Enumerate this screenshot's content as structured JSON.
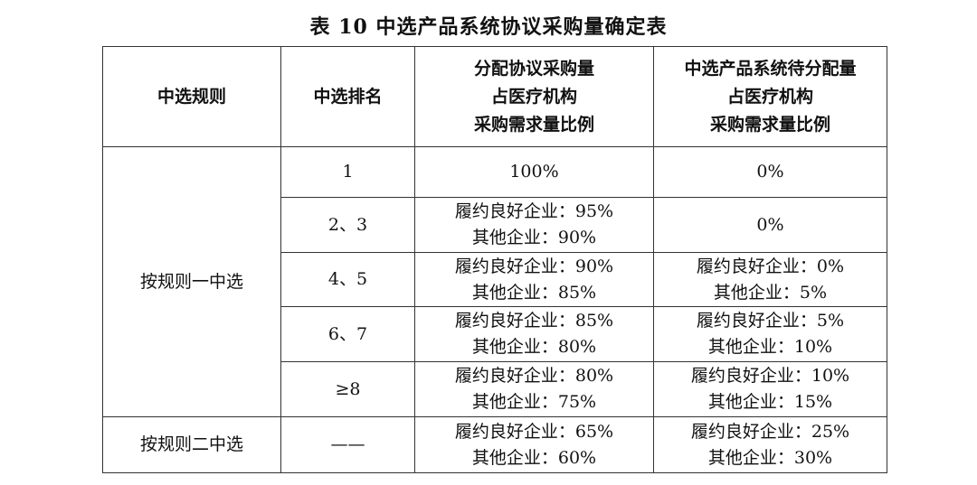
{
  "title": "表 10  中选产品系统协议采购量确定表",
  "headers": [
    {
      "lines": [
        "中选规则"
      ]
    },
    {
      "lines": [
        "中选排名"
      ]
    },
    {
      "lines": [
        "分配协议采购量",
        "占医疗机构",
        "采购需求量比例"
      ]
    },
    {
      "lines": [
        "中选产品系统待分配量",
        "占医疗机构",
        "采购需求量比例"
      ]
    }
  ],
  "groups": [
    {
      "rule": "按规则一中选"
    },
    {
      "rule": "按规则二中选"
    }
  ],
  "rows": [
    {
      "rank": "1",
      "allocated": [
        "100%"
      ],
      "pending": [
        "0%"
      ]
    },
    {
      "rank": "2、3",
      "allocated": [
        "履约良好企业：95%",
        "其他企业：90%"
      ],
      "pending": [
        "0%"
      ]
    },
    {
      "rank": "4、5",
      "allocated": [
        "履约良好企业：90%",
        "其他企业：85%"
      ],
      "pending": [
        "履约良好企业：0%",
        "其他企业：5%"
      ]
    },
    {
      "rank": "6、7",
      "allocated": [
        "履约良好企业：85%",
        "其他企业：80%"
      ],
      "pending": [
        "履约良好企业：5%",
        "其他企业：10%"
      ]
    },
    {
      "rank": "≥8",
      "allocated": [
        "履约良好企业：80%",
        "其他企业：75%"
      ],
      "pending": [
        "履约良好企业：10%",
        "其他企业：15%"
      ]
    },
    {
      "rank": "——",
      "allocated": [
        "履约良好企业：65%",
        "其他企业：60%"
      ],
      "pending": [
        "履约良好企业：25%",
        "其他企业：30%"
      ]
    }
  ]
}
